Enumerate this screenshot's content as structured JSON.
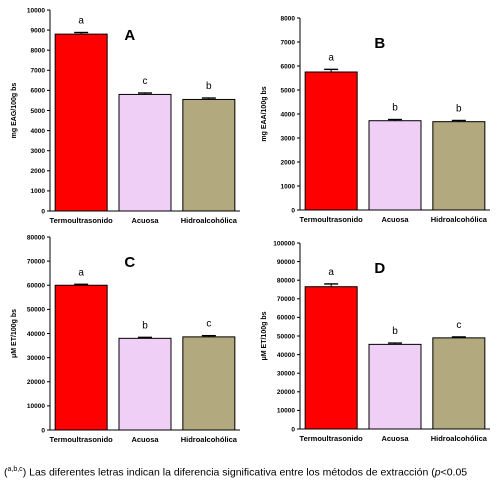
{
  "colors": {
    "Termoultrasonido": "#ff0000",
    "Acuosa": "#efcff6",
    "Hidroalcohólica": "#b3a97e"
  },
  "chart_data": [
    {
      "type": "bar",
      "panel_label": "A",
      "ylabel": "mg EAG/100g bs",
      "ylim": [
        0,
        10000
      ],
      "yticks": [
        0,
        1000,
        2000,
        3000,
        4000,
        5000,
        6000,
        7000,
        8000,
        9000,
        10000
      ],
      "categories": [
        "Termoultrasonido",
        "Acuosa",
        "Hidroalcohólica"
      ],
      "values": [
        8800,
        5800,
        5550
      ],
      "errors": [
        80,
        70,
        70
      ],
      "letters": [
        "a",
        "c",
        "b"
      ]
    },
    {
      "type": "bar",
      "panel_label": "B",
      "ylabel": "mg EAA/100g bs",
      "ylim": [
        0,
        8000
      ],
      "yticks": [
        0,
        1000,
        2000,
        3000,
        4000,
        5000,
        6000,
        7000,
        8000
      ],
      "categories": [
        "Termoultrasonido",
        "Acuosa",
        "Hidroalcohólica"
      ],
      "values": [
        5750,
        3720,
        3680
      ],
      "errors": [
        110,
        50,
        50
      ],
      "letters": [
        "a",
        "b",
        "b"
      ]
    },
    {
      "type": "bar",
      "panel_label": "C",
      "ylabel": "μM ET/100g bs",
      "ylim": [
        0,
        80000
      ],
      "yticks": [
        0,
        10000,
        20000,
        30000,
        40000,
        50000,
        60000,
        70000,
        80000
      ],
      "categories": [
        "Termoultrasonido",
        "Acuosa",
        "Hidroalcohólica"
      ],
      "values": [
        60000,
        38000,
        38600
      ],
      "errors": [
        400,
        400,
        500
      ],
      "letters": [
        "a",
        "b",
        "c"
      ]
    },
    {
      "type": "bar",
      "panel_label": "D",
      "ylabel": "μM ET/100g bs",
      "ylim": [
        0,
        100000
      ],
      "yticks": [
        0,
        10000,
        20000,
        30000,
        40000,
        50000,
        60000,
        70000,
        80000,
        90000,
        100000
      ],
      "categories": [
        "Termoultrasonido",
        "Acuosa",
        "Hidroalcohólica"
      ],
      "values": [
        76500,
        45500,
        49000
      ],
      "errors": [
        1500,
        700,
        500
      ],
      "letters": [
        "a",
        "b",
        "c"
      ]
    }
  ],
  "footnote": {
    "sup": "a,b,c",
    "open_paren": "(",
    "close_paren": ")",
    "text": " Las diferentes letras indican la diferencia significativa entre los métodos de extracción (",
    "p": "p",
    "tail": "<0.05"
  }
}
